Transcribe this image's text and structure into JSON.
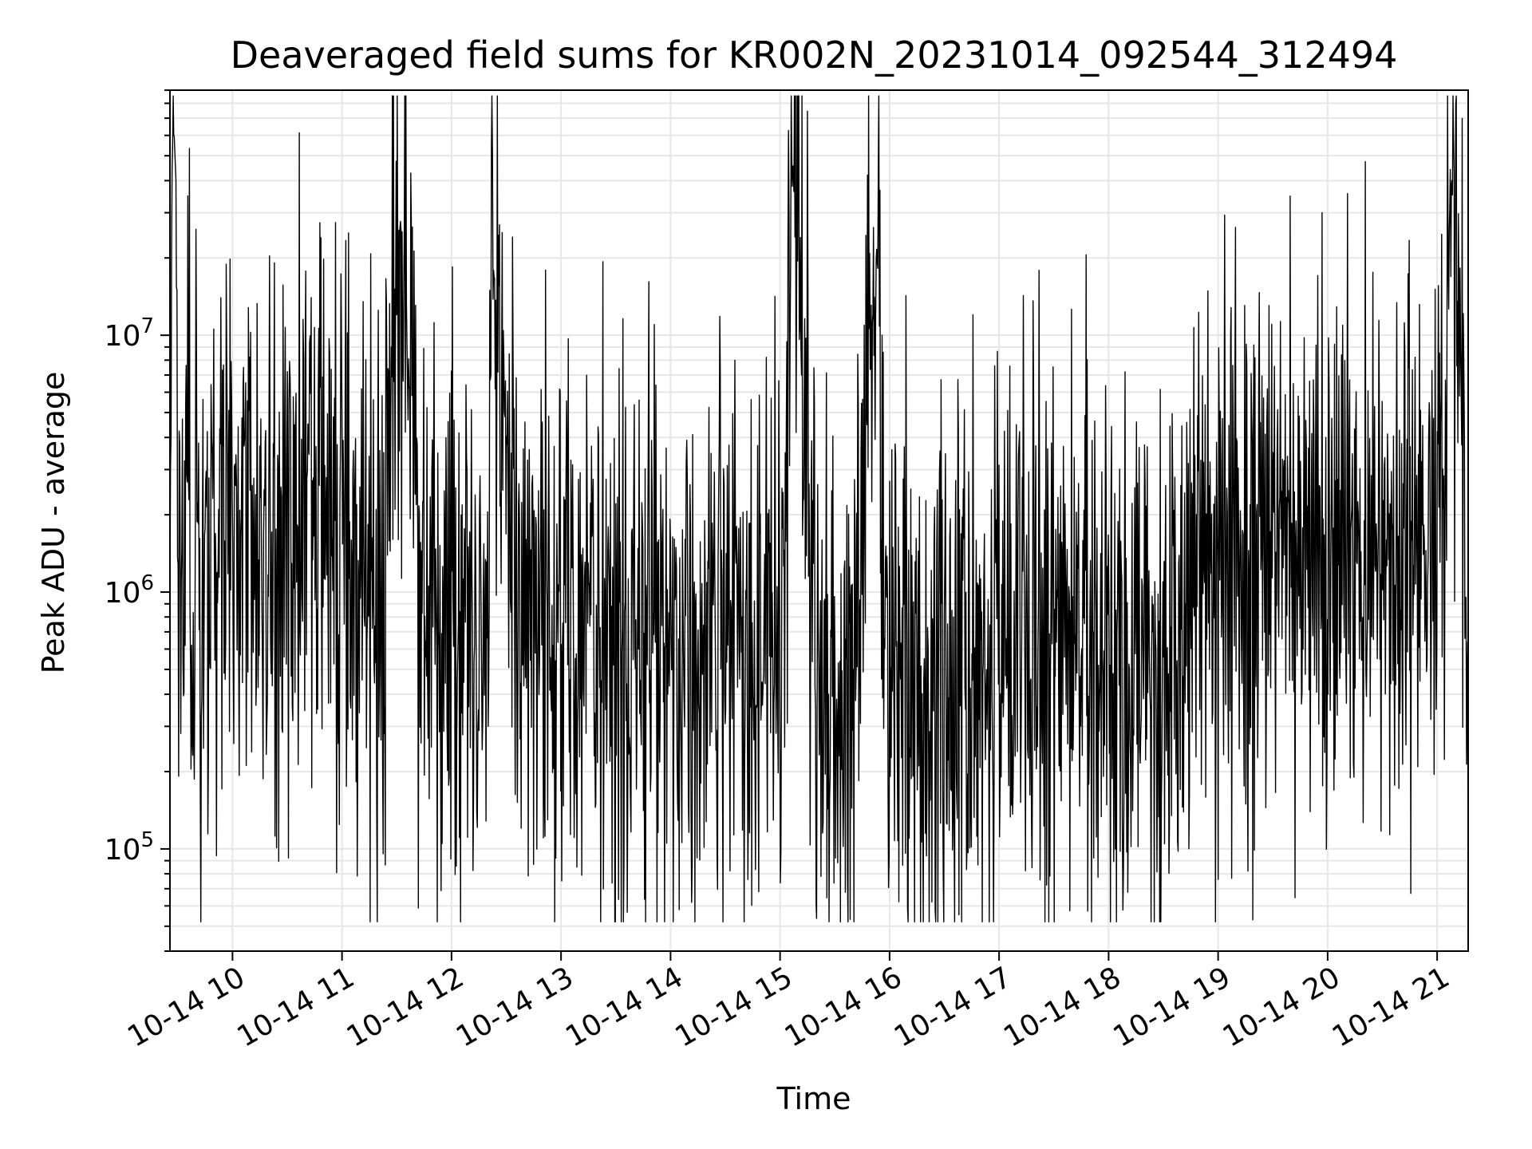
{
  "chart_data": {
    "type": "line",
    "title": "Deaveraged field sums for KR002N_20231014_092544_312494",
    "xlabel": "Time",
    "ylabel": "Peak ADU - average",
    "yscale": "log",
    "ylim": [
      40000,
      90000000
    ],
    "xlim": [
      "2023-10-14 09:25:44",
      "2023-10-14 21:17:00"
    ],
    "x_ticks": [
      "10-14 10",
      "10-14 11",
      "10-14 12",
      "10-14 13",
      "10-14 14",
      "10-14 15",
      "10-14 16",
      "10-14 17",
      "10-14 18",
      "10-14 19",
      "10-14 20",
      "10-14 21"
    ],
    "y_ticks": [
      {
        "value": 100000,
        "base": "10",
        "exp": "5"
      },
      {
        "value": 1000000,
        "base": "10",
        "exp": "6"
      },
      {
        "value": 10000000,
        "base": "10",
        "exp": "7"
      }
    ],
    "grid": true,
    "line_color": "#000000",
    "grid_color": "#e6e6e6",
    "series": [
      {
        "x": [
          "2023-10-14 09:25:44",
          "2023-10-14 09:27:00",
          "2023-10-14 09:28:00",
          "2023-10-14 09:29:00",
          "2023-10-14 09:30:00",
          "2023-10-14 09:35:00",
          "2023-10-14 09:45:00",
          "2023-10-14 10:00:00",
          "2023-10-14 10:20:00",
          "2023-10-14 10:40:00",
          "2023-10-14 11:00:00",
          "2023-10-14 11:20:00",
          "2023-10-14 11:32:00",
          "2023-10-14 11:45:00",
          "2023-10-14 12:00:00",
          "2023-10-14 12:20:00",
          "2023-10-14 12:23:00",
          "2023-10-14 12:40:00",
          "2023-10-14 13:00:00",
          "2023-10-14 13:20:00",
          "2023-10-14 13:40:00",
          "2023-10-14 14:00:00",
          "2023-10-14 14:20:00",
          "2023-10-14 14:40:00",
          "2023-10-14 15:00:00",
          "2023-10-14 15:07:00",
          "2023-10-14 15:20:00",
          "2023-10-14 15:40:00",
          "2023-10-14 15:53:00",
          "2023-10-14 16:00:00",
          "2023-10-14 16:20:00",
          "2023-10-14 16:40:00",
          "2023-10-14 17:00:00",
          "2023-10-14 17:20:00",
          "2023-10-14 17:40:00",
          "2023-10-14 18:00:00",
          "2023-10-14 18:20:00",
          "2023-10-14 18:40:00",
          "2023-10-14 19:00:00",
          "2023-10-14 19:20:00",
          "2023-10-14 19:40:00",
          "2023-10-14 20:00:00",
          "2023-10-14 20:20:00",
          "2023-10-14 20:40:00",
          "2023-10-14 21:00:00",
          "2023-10-14 21:08:00",
          "2023-10-14 21:17:00"
        ],
        "values": [
          2000000,
          55000000,
          62000000,
          40000000,
          1500000,
          1800000,
          1200000,
          1500000,
          1200000,
          2500000,
          2000000,
          900000,
          28000000,
          900000,
          800000,
          900000,
          18000000,
          700000,
          700000,
          700000,
          600000,
          500000,
          600000,
          700000,
          600000,
          46000000,
          500000,
          500000,
          22000000,
          400000,
          400000,
          400000,
          500000,
          700000,
          800000,
          700000,
          500000,
          700000,
          1500000,
          1300000,
          1600000,
          1200000,
          1400000,
          1500000,
          1500000,
          42000000,
          800000
        ]
      }
    ]
  }
}
